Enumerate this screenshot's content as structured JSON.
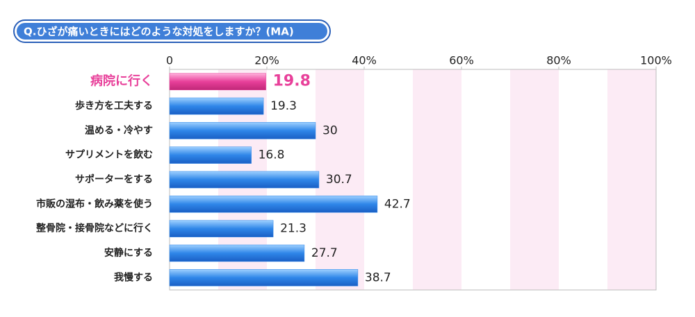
{
  "chart_data": {
    "type": "bar",
    "orientation": "horizontal",
    "title": "Q.ひざが痛いときにはどのような対処をしますか？(MA)",
    "categories": [
      "病院に行く",
      "歩き方を工夫する",
      "温める・冷やす",
      "サプリメントを飲む",
      "サポーターをする",
      "市販の湿布・飲み薬を使う",
      "整骨院・接骨院などに行く",
      "安静にする",
      "我慢する"
    ],
    "values": [
      19.8,
      19.3,
      30.0,
      16.8,
      30.7,
      42.7,
      21.3,
      27.7,
      38.7
    ],
    "colors": [
      "#e8409a",
      "#2f86e8",
      "#2f86e8",
      "#2f86e8",
      "#2f86e8",
      "#2f86e8",
      "#2f86e8",
      "#2f86e8",
      "#2f86e8"
    ],
    "xlim": [
      0,
      100
    ],
    "xticks": [
      0,
      {
        "value": 20,
        "label": "20%"
      },
      {
        "value": 40,
        "label": "40%"
      },
      {
        "value": 60,
        "label": "60%"
      },
      {
        "value": 80,
        "label": "80%"
      },
      {
        "value": 100,
        "label": "100%"
      }
    ]
  }
}
